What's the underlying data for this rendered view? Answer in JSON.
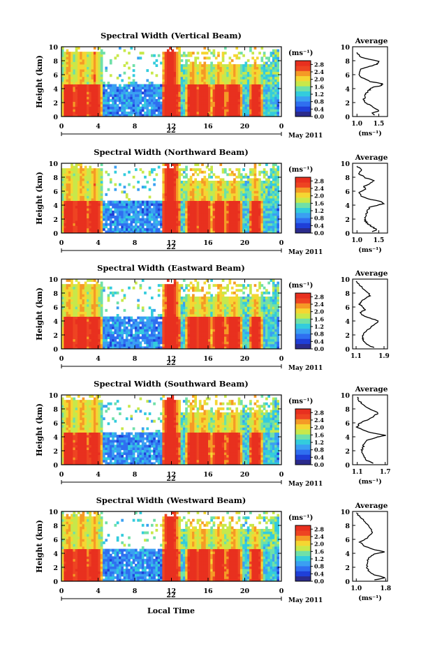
{
  "colors": {
    "scale": [
      "#2b2b8c",
      "#1f3fd8",
      "#2f6ff0",
      "#3aa0f2",
      "#33ccdd",
      "#6fe0a8",
      "#c8e84a",
      "#f5d632",
      "#f59a26",
      "#ee4422",
      "#e8301f"
    ],
    "text": "#000000",
    "missing": "#ffffff"
  },
  "footer": {
    "xlabel": "Local Time"
  },
  "chart_data": [
    {
      "type": "heatmap",
      "title": "Spectral Width (Vertical Beam)",
      "ylabel": "Height (km)",
      "ylim": [
        0,
        10
      ],
      "y_ticks": [
        "0",
        "2",
        "4",
        "6",
        "8",
        "10"
      ],
      "xlim": [
        0,
        24
      ],
      "x_ticks": [
        "0",
        "4",
        "8",
        "12",
        "16",
        "20",
        "0"
      ],
      "day_label": "22",
      "date_label": "May 2011",
      "colorbar": {
        "unit": "(ms⁻¹)",
        "ticks": [
          "0.0",
          "0.4",
          "0.8",
          "1.2",
          "1.6",
          "2.0",
          "2.4",
          "2.8"
        ],
        "range": [
          0,
          3
        ]
      },
      "average": {
        "title": "Average",
        "xlabel": "(ms⁻¹)",
        "x_ticks": [
          "1.0",
          "1.5"
        ],
        "xlim": [
          0.9,
          1.7
        ],
        "ylim": [
          0,
          10
        ],
        "x": [
          1.4,
          1.35,
          1.5,
          1.4,
          1.3,
          1.2,
          1.15,
          1.18,
          1.2,
          1.25,
          1.3,
          1.35,
          1.55,
          1.6,
          1.3,
          1.1,
          1.05,
          1.1,
          1.3,
          1.45,
          1.5,
          1.1,
          1.0
        ],
        "y": [
          0.2,
          0.5,
          0.8,
          1.2,
          1.6,
          2.0,
          2.4,
          2.8,
          3.2,
          3.6,
          3.9,
          4.2,
          4.4,
          4.7,
          5.0,
          5.6,
          6.2,
          6.8,
          7.2,
          7.5,
          7.9,
          8.5,
          9.2
        ]
      }
    },
    {
      "type": "heatmap",
      "title": "Spectral Width (Northward Beam)",
      "ylabel": "Height (km)",
      "ylim": [
        0,
        10
      ],
      "y_ticks": [
        "0",
        "2",
        "4",
        "6",
        "8",
        "10"
      ],
      "xlim": [
        0,
        24
      ],
      "x_ticks": [
        "0",
        "4",
        "8",
        "12",
        "16",
        "20",
        "0"
      ],
      "day_label": "22",
      "date_label": "May 2011",
      "colorbar": {
        "unit": "(ms⁻¹)",
        "ticks": [
          "0.0",
          "0.4",
          "0.8",
          "1.2",
          "1.6",
          "2.0",
          "2.4",
          "2.8"
        ],
        "range": [
          0,
          3
        ]
      },
      "average": {
        "title": "Average",
        "xlabel": "(ms⁻¹)",
        "x_ticks": [
          "1.0",
          "1.5"
        ],
        "xlim": [
          0.9,
          1.7
        ],
        "ylim": [
          0,
          10
        ],
        "x": [
          1.35,
          1.45,
          1.35,
          1.25,
          1.2,
          1.18,
          1.2,
          1.22,
          1.25,
          1.3,
          1.6,
          1.55,
          1.25,
          1.1,
          1.05,
          1.2,
          1.15,
          1.3,
          1.4,
          1.2,
          1.05,
          1.1,
          1.0
        ],
        "y": [
          0.2,
          0.5,
          0.9,
          1.3,
          1.7,
          2.1,
          2.5,
          2.9,
          3.3,
          3.7,
          4.2,
          4.5,
          4.9,
          5.3,
          5.8,
          6.3,
          6.7,
          7.1,
          7.5,
          7.9,
          8.5,
          9.1,
          9.6
        ]
      }
    },
    {
      "type": "heatmap",
      "title": "Spectral Width (Eastward Beam)",
      "ylabel": "Height (km)",
      "ylim": [
        0,
        10
      ],
      "y_ticks": [
        "0",
        "2",
        "4",
        "6",
        "8",
        "10"
      ],
      "xlim": [
        0,
        24
      ],
      "x_ticks": [
        "0",
        "4",
        "8",
        "12",
        "16",
        "20",
        "0"
      ],
      "day_label": "22",
      "date_label": "May 2011",
      "colorbar": {
        "unit": "(ms⁻¹)",
        "ticks": [
          "0.0",
          "0.4",
          "0.8",
          "1.2",
          "1.6",
          "2.0",
          "2.4",
          "2.8"
        ],
        "range": [
          0,
          3
        ]
      },
      "average": {
        "title": "Average",
        "xlabel": "",
        "x_ticks": [
          "1.1",
          "1.9"
        ],
        "xlim": [
          1.0,
          2.0
        ],
        "ylim": [
          0,
          10
        ],
        "x": [
          1.6,
          1.45,
          1.35,
          1.3,
          1.28,
          1.3,
          1.4,
          1.55,
          1.75,
          1.5,
          1.3,
          1.2,
          1.35,
          1.3,
          1.2,
          1.25,
          1.35,
          1.5,
          1.45,
          1.3,
          1.2,
          1.1
        ],
        "y": [
          0.2,
          0.5,
          0.9,
          1.3,
          1.7,
          2.1,
          2.6,
          3.2,
          4.0,
          4.4,
          4.8,
          5.2,
          5.6,
          6.0,
          6.4,
          6.8,
          7.2,
          7.6,
          8.0,
          8.6,
          9.2,
          9.7
        ]
      }
    },
    {
      "type": "heatmap",
      "title": "Spectral Width (Southward Beam)",
      "ylabel": "Height (km)",
      "ylim": [
        0,
        10
      ],
      "y_ticks": [
        "0",
        "2",
        "4",
        "6",
        "8",
        "10"
      ],
      "xlim": [
        0,
        24
      ],
      "x_ticks": [
        "0",
        "4",
        "8",
        "12",
        "16",
        "20",
        "0"
      ],
      "day_label": "22",
      "date_label": "May 2011",
      "colorbar": {
        "unit": "(ms⁻¹)",
        "ticks": [
          "0.0",
          "0.4",
          "0.8",
          "1.2",
          "1.6",
          "2.0",
          "2.4",
          "2.8"
        ],
        "range": [
          0,
          3
        ]
      },
      "average": {
        "title": "Average",
        "xlabel": "(ms⁻¹)",
        "x_ticks": [
          "1.1",
          "1.7"
        ],
        "xlim": [
          1.0,
          1.75
        ],
        "ylim": [
          0,
          10
        ],
        "x": [
          1.45,
          1.3,
          1.25,
          1.22,
          1.2,
          1.22,
          1.25,
          1.3,
          1.5,
          1.7,
          1.4,
          1.2,
          1.1,
          1.15,
          1.3,
          1.45,
          1.55,
          1.4,
          1.25,
          1.15,
          1.1
        ],
        "y": [
          0.2,
          0.6,
          1.0,
          1.5,
          2.0,
          2.5,
          3.0,
          3.5,
          3.9,
          4.2,
          4.6,
          5.0,
          5.4,
          5.9,
          6.4,
          6.9,
          7.4,
          7.9,
          8.5,
          9.1,
          9.7
        ]
      }
    },
    {
      "type": "heatmap",
      "title": "Spectral Width (Westward Beam)",
      "ylabel": "Height (km)",
      "ylim": [
        0,
        10
      ],
      "y_ticks": [
        "0",
        "2",
        "4",
        "6",
        "8",
        "10"
      ],
      "xlim": [
        0,
        24
      ],
      "x_ticks": [
        "0",
        "4",
        "8",
        "12",
        "16",
        "20",
        "0"
      ],
      "day_label": "22",
      "date_label": "May 2011",
      "colorbar": {
        "unit": "(ms⁻¹)",
        "ticks": [
          "0.0",
          "0.4",
          "0.8",
          "1.2",
          "1.6",
          "2.0",
          "2.4",
          "2.8"
        ],
        "range": [
          0,
          3
        ]
      },
      "average": {
        "title": "Average",
        "xlabel": "(ms⁻¹)",
        "x_ticks": [
          "1.0",
          "1.8"
        ],
        "xlim": [
          0.9,
          1.85
        ],
        "ylim": [
          0,
          10
        ],
        "x": [
          1.5,
          1.8,
          1.5,
          1.35,
          1.3,
          1.28,
          1.3,
          1.35,
          1.5,
          1.75,
          1.45,
          1.2,
          1.1,
          1.3,
          1.45,
          1.35,
          1.25,
          1.1,
          1.0
        ],
        "y": [
          0.2,
          0.5,
          0.9,
          1.4,
          1.9,
          2.4,
          2.9,
          3.4,
          3.9,
          4.2,
          4.6,
          5.1,
          5.6,
          6.2,
          7.0,
          7.8,
          8.5,
          9.2,
          9.8
        ]
      }
    }
  ]
}
